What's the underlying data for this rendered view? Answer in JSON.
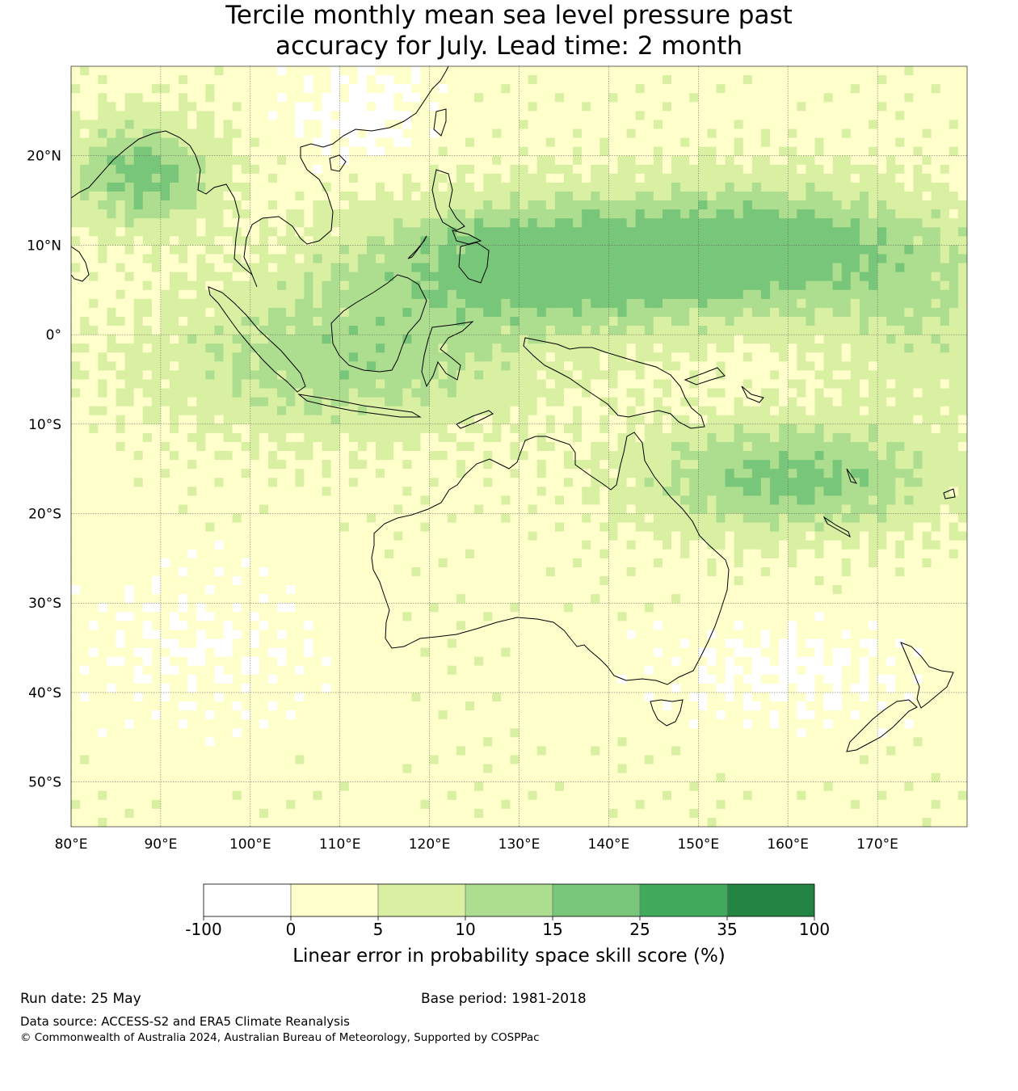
{
  "title_line1": "Tercile monthly mean sea level pressure past",
  "title_line2": "accuracy for July. Lead time: 2 month",
  "map": {
    "lon_range": [
      80,
      180
    ],
    "lat_range": [
      -55,
      30
    ],
    "lon_ticks": [
      {
        "value": 80,
        "label": "80°E"
      },
      {
        "value": 90,
        "label": "90°E"
      },
      {
        "value": 100,
        "label": "100°E"
      },
      {
        "value": 110,
        "label": "110°E"
      },
      {
        "value": 120,
        "label": "120°E"
      },
      {
        "value": 130,
        "label": "130°E"
      },
      {
        "value": 140,
        "label": "140°E"
      },
      {
        "value": 150,
        "label": "150°E"
      },
      {
        "value": 160,
        "label": "160°E"
      },
      {
        "value": 170,
        "label": "170°E"
      }
    ],
    "lat_ticks": [
      {
        "value": 20,
        "label": "20°N"
      },
      {
        "value": 10,
        "label": "10°N"
      },
      {
        "value": 0,
        "label": "0°"
      },
      {
        "value": -10,
        "label": "10°S"
      },
      {
        "value": -20,
        "label": "20°S"
      },
      {
        "value": -30,
        "label": "30°S"
      },
      {
        "value": -40,
        "label": "40°S"
      },
      {
        "value": -50,
        "label": "50°S"
      }
    ]
  },
  "colorbar": {
    "bounds": [
      "-100",
      "0",
      "5",
      "10",
      "15",
      "25",
      "35",
      "100"
    ],
    "colors": [
      "#ffffff",
      "#ffffcc",
      "#d9f0a3",
      "#addd8e",
      "#78c679",
      "#41ab5d",
      "#238443"
    ],
    "label": "Linear error in probability space skill score (%)"
  },
  "footer": {
    "run_date": "Run date: 25 May",
    "base_period": "Base period: 1981-2018",
    "data_source": "Data source: ACCESS-S2 and ERA5 Climate Reanalysis",
    "copyright": "© Commonwealth of Australia 2024, Australian Bureau of Meteorology, Supported by COSPPac"
  }
}
